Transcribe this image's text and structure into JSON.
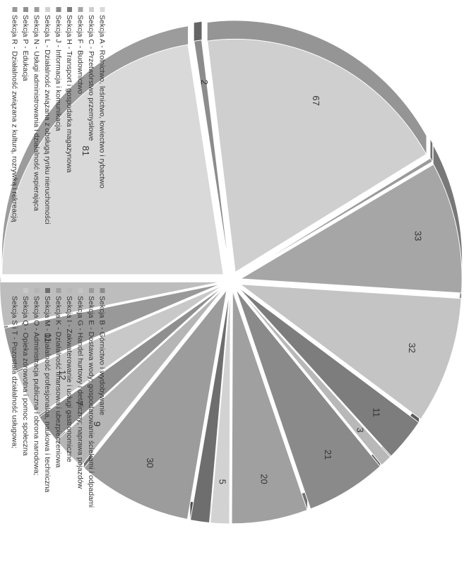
{
  "chart_data": {
    "type": "pie",
    "title": "",
    "style": "exploded 3D pie, rotated 90 degrees",
    "legend_position": "bottom",
    "categories": [
      "Sekcja A - Rolnictwo, leśnictwo, łowiectwo i rybactwo",
      "Sekcja B - Górnictwo i wydobywanie",
      "Sekcja C - Przetwórstwo przemysłowe",
      "Sekcja E - Dostawa wody; gospodarowanie ściekami i odpadami",
      "Sekcja F - Budownictwo",
      "Sekcja G - Handel hurtowy i detaliczny; naprawa pojazdów",
      "Sekcja H - Transport i gospodarka magazynowa",
      "Sekcja I - Zakwaterowanie i usługi gastronomiczne",
      "Sekcja J - Informacja i komunikacja",
      "Sekcja K - Działalność finansowa i ubezpieczeniowa",
      "Sekcja L - Działalność związana z obsługą rynku nieruchomości",
      "Sekcja M - Działalność profesjonalna, naukowa i techniczna",
      "Sekcja N - Usługi administrowania i działalność wspierająca",
      "Sekcja O - Administracja publiczna i obrona narodowa;",
      "Sekcja P - Edukacja",
      "Sekcja Q - Opieka zdrowotna i pomoc społeczna",
      "Sekcja R - Działalność związana z kulturą, rozrywką i rekreacją",
      "Sekcja S i T - Pozostała działalność usługowa;"
    ],
    "values": [
      81,
      2,
      67,
      1,
      33,
      32,
      11,
      3,
      21,
      20,
      5,
      5,
      30,
      9,
      7,
      12,
      11,
      11
    ],
    "value_labels": [
      "81",
      "2",
      "67",
      "",
      "33",
      "32",
      "11",
      "3",
      "21",
      "20",
      "5",
      "",
      "30",
      "9",
      "7",
      "12",
      "11",
      ""
    ],
    "colors": [
      "#d9d9d9",
      "#8c8c8c",
      "#cfcfcf",
      "#9a9a9a",
      "#a6a6a6",
      "#c4c4c4",
      "#7d7d7d",
      "#b8b8b8",
      "#8a8a8a",
      "#a0a0a0",
      "#d2d2d2",
      "#6e6e6e",
      "#9c9c9c",
      "#b5b5b5",
      "#8f8f8f",
      "#c8c8c8",
      "#999999",
      "#bdbdbd"
    ]
  }
}
